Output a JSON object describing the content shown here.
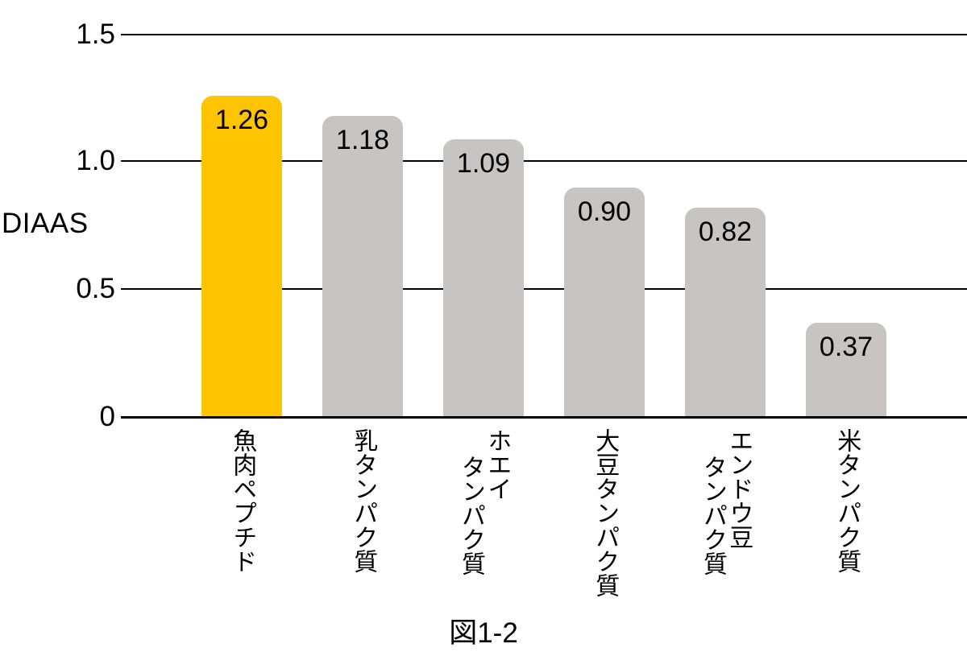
{
  "chart_data": {
    "type": "bar",
    "title": "",
    "ylabel": "DIAAS",
    "xlabel": "",
    "caption": "図1-2",
    "categories": [
      "魚肉ペプチド",
      "乳タンパク質",
      "ホエイタンパク質",
      "大豆タンパク質",
      "エンドウ豆タンパク質",
      "米タンパク質"
    ],
    "category_lines": [
      [
        "魚肉ペプチド"
      ],
      [
        "乳タンパク質"
      ],
      [
        "ホエイ",
        "タンパク質"
      ],
      [
        "大豆タンパク質"
      ],
      [
        "エンドウ豆",
        "タンパク質"
      ],
      [
        "米タンパク質"
      ]
    ],
    "values": [
      1.26,
      1.18,
      1.09,
      0.9,
      0.82,
      0.37
    ],
    "value_labels": [
      "1.26",
      "1.18",
      "1.09",
      "0.90",
      "0.82",
      "0.37"
    ],
    "yticks": [
      {
        "value": 1.5,
        "label": "1.5"
      },
      {
        "value": 1.0,
        "label": "1.0"
      },
      {
        "value": 0.5,
        "label": "0.5"
      },
      {
        "value": 0.0,
        "label": "0"
      }
    ],
    "ylim": [
      0,
      1.5
    ],
    "grid": true,
    "legend_position": "none",
    "highlight_index": 0,
    "highlight_color": "#FFC400",
    "bar_color": "#C8C4C4",
    "line_color": "#000000"
  }
}
